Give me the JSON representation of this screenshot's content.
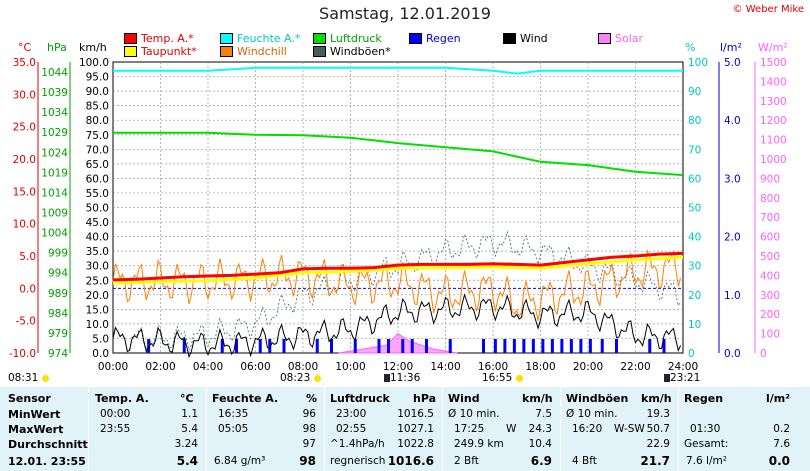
{
  "title": "Samstag, 12.01.2019",
  "copyright": "© Weber Mike",
  "legend": [
    {
      "label": "Temp. A.*",
      "color": "#ff0000"
    },
    {
      "label": "Taupunkt*",
      "color": "#ffff00"
    },
    {
      "label": "Feuchte A.*",
      "color": "#00ffff"
    },
    {
      "label": "Windchill",
      "color": "#ff8000"
    },
    {
      "label": "Luftdruck",
      "color": "#00e000"
    },
    {
      "label": "Windböen*",
      "color": "#406060"
    },
    {
      "label": "Regen",
      "color": "#0000ff"
    },
    {
      "label": "Wind",
      "color": "#000000"
    },
    {
      "label": "Solar",
      "color": "#ff80ff"
    }
  ],
  "axis_units": {
    "temp": "°C",
    "pressure": "hPa",
    "wind": "km/h",
    "humidity": "%",
    "rain": "l/m²",
    "solar": "W/m²"
  },
  "colors": {
    "temp": "#ff0000",
    "dew": "#ffff00",
    "humidity": "#00ffff",
    "windchill": "#ff8000",
    "pressure": "#00e000",
    "gust": "#406060",
    "rain": "#0000ff",
    "wind": "#000000",
    "solar": "#ff80ff",
    "table_bg": "#e1f3f8"
  },
  "chart_data": {
    "type": "line",
    "x_label": "",
    "x_ticks": [
      "00:00",
      "02:00",
      "04:00",
      "06:00",
      "08:00",
      "10:00",
      "12:00",
      "14:00",
      "16:00",
      "18:00",
      "20:00",
      "22:00",
      "24:00"
    ],
    "axes": {
      "temp_ticks": [
        "35.0",
        "30.0",
        "25.0",
        "20.0",
        "15.0",
        "10.0",
        "5.0",
        "0.0",
        "-5.0",
        "-10.0"
      ],
      "pressure_ticks": [
        "1044",
        "1039",
        "1034",
        "1029",
        "1024",
        "1019",
        "1014",
        "1009",
        "1004",
        "999",
        "994",
        "989",
        "984",
        "979",
        "974"
      ],
      "wind_ticks": [
        "100.0",
        "95.0",
        "90.0",
        "85.0",
        "80.0",
        "75.0",
        "70.0",
        "65.0",
        "60.0",
        "55.0",
        "50.0",
        "45.0",
        "40.0",
        "35.0",
        "30.0",
        "25.0",
        "20.0",
        "15.0",
        "10.0",
        "5.0",
        "0.0"
      ],
      "humidity_ticks": [
        "100",
        "90",
        "80",
        "70",
        "60",
        "50",
        "40",
        "30",
        "20",
        "10",
        "0"
      ],
      "rain_ticks": [
        "5.0",
        "4.0",
        "3.0",
        "2.0",
        "1.0",
        "0.0"
      ],
      "solar_ticks": [
        "1500",
        "1400",
        "1300",
        "1200",
        "1100",
        "1000",
        "900",
        "800",
        "700",
        "600",
        "500",
        "400",
        "300",
        "200",
        "100",
        "0"
      ],
      "temp_range": [
        -10,
        35
      ],
      "wind_range": [
        0,
        100
      ]
    },
    "series": [
      {
        "name": "Temp. A.*",
        "x": [
          0,
          1,
          2,
          3,
          4,
          5,
          6,
          7,
          8,
          9,
          10,
          11,
          12,
          13,
          14,
          15,
          16,
          17,
          18,
          19,
          20,
          21,
          22,
          23,
          24
        ],
        "values": [
          1.3,
          1.4,
          1.6,
          1.8,
          1.9,
          2.0,
          2.2,
          2.4,
          3.0,
          3.1,
          3.1,
          3.2,
          3.6,
          3.7,
          3.7,
          3.7,
          3.8,
          3.7,
          3.6,
          4.0,
          4.4,
          4.8,
          5.0,
          5.3,
          5.4
        ]
      },
      {
        "name": "Taupunkt*",
        "x": [
          0,
          2,
          4,
          6,
          8,
          10,
          12,
          14,
          16,
          18,
          20,
          22,
          24
        ],
        "values": [
          0.8,
          1.0,
          1.2,
          1.6,
          2.4,
          2.6,
          3.1,
          3.2,
          3.3,
          3.1,
          3.8,
          4.4,
          4.8
        ]
      },
      {
        "name": "Feuchte A.*",
        "x": [
          0,
          2,
          4,
          6,
          8,
          10,
          12,
          14,
          16,
          17,
          18,
          20,
          22,
          24
        ],
        "values": [
          97,
          97,
          97,
          98,
          98,
          98,
          98,
          98,
          97,
          96,
          97,
          97,
          97,
          97
        ]
      },
      {
        "name": "Luftdruck",
        "x": [
          0,
          2,
          4,
          6,
          8,
          10,
          12,
          14,
          16,
          18,
          20,
          22,
          24
        ],
        "values": [
          1027.0,
          1027.0,
          1027.0,
          1026.5,
          1026.4,
          1025.8,
          1024.5,
          1023.5,
          1022.5,
          1020.0,
          1019.2,
          1017.6,
          1016.8
        ]
      },
      {
        "name": "Windchill",
        "x": [
          0,
          2,
          4,
          6,
          8,
          10,
          12,
          14,
          16,
          17,
          18,
          20,
          22,
          24
        ],
        "values": [
          1.0,
          1.0,
          1.0,
          1.5,
          2.0,
          0.5,
          1.0,
          -1.0,
          0.0,
          -2.5,
          -1.5,
          0.0,
          2.5,
          3.5
        ]
      },
      {
        "name": "Windböen*",
        "x": [
          0,
          2,
          4,
          6,
          8,
          10,
          12,
          14,
          16,
          18,
          20,
          22,
          24
        ],
        "values": [
          5,
          5,
          6,
          10,
          20,
          25,
          30,
          35,
          38,
          35,
          30,
          25,
          20
        ]
      },
      {
        "name": "Wind",
        "x": [
          0,
          2,
          4,
          6,
          8,
          10,
          12,
          14,
          16,
          18,
          20,
          22,
          24
        ],
        "values": [
          5,
          4,
          3,
          4,
          6,
          8,
          14,
          15,
          16,
          13,
          14,
          6,
          5
        ]
      },
      {
        "name": "Solar",
        "x": [
          9.5,
          10.5,
          11.5,
          12,
          12.5,
          13.5,
          14.5
        ],
        "values": [
          0,
          20,
          40,
          100,
          60,
          20,
          0
        ]
      }
    ],
    "rain_hours": [
      1.5,
      3,
      4.6,
      5.2,
      6.2,
      6.6,
      7.2,
      8.6,
      9.2,
      10.2,
      11.2,
      11.6,
      12.2,
      12.6,
      13.2,
      14.2,
      15.6,
      16.1,
      16.5,
      16.9,
      17.3,
      17.7,
      18.1,
      18.5,
      18.9,
      19.3,
      19.7,
      20.1,
      20.6,
      21.2,
      22.6,
      23.2
    ]
  },
  "marks": {
    "sunrise": "08:23",
    "sunset": "16:55",
    "moonrise": "11:36",
    "moonset": "23:21",
    "day_start": "08:31"
  },
  "table": {
    "sensor": {
      "header": "Sensor",
      "rows": [
        "MinWert",
        "MaxWert",
        "Durchschnitt"
      ],
      "footer": "12.01. 23:55"
    },
    "temp": {
      "header": "Temp. A.",
      "unit": "°C",
      "min_time": "00:00",
      "min": "1.1",
      "max_time": "23:55",
      "max": "5.4",
      "avg": "3.24",
      "current": "5.4"
    },
    "humidity": {
      "header": "Feuchte A.",
      "unit": "%",
      "min_time": "16:35",
      "min": "96",
      "max_time": "05:05",
      "max": "98",
      "avg": "97",
      "abs": "6.84 g/m³",
      "current": "98"
    },
    "pressure": {
      "header": "Luftdruck",
      "unit": "hPa",
      "min_time": "23:00",
      "min": "1016.5",
      "max_time": "02:55",
      "max": "1027.1",
      "trend": "^1.4hPa/h",
      "avg": "1022.8",
      "forecast": "regnerisch",
      "current": "1016.6"
    },
    "wind": {
      "header": "Wind",
      "unit": "km/h",
      "r1_label": "Ø 10 min.",
      "r1_val": "7.5",
      "r2_time": "17:25",
      "r2_dir": "W",
      "r2_val": "24.3",
      "r3_dist": "249.9 km",
      "r3_val": "10.4",
      "r4_bft": "2 Bft",
      "current": "6.9"
    },
    "gust": {
      "header": "Windböen",
      "unit": "km/h",
      "r1_label": "Ø 10 min.",
      "r1_val": "19.3",
      "r2_time": "16:20",
      "r2_dir": "W-SW",
      "r2_val": "50.7",
      "avg": "22.9",
      "r4_bft": "4 Bft",
      "current": "21.7"
    },
    "rain": {
      "header": "Regen",
      "unit": "l/m²",
      "r1_val": "",
      "r2_time": "01:30",
      "r2_val": "0.2",
      "total_label": "Gesamt:",
      "total": "7.6",
      "r4_val": "7.6 l/m²",
      "current": "0.0"
    }
  }
}
